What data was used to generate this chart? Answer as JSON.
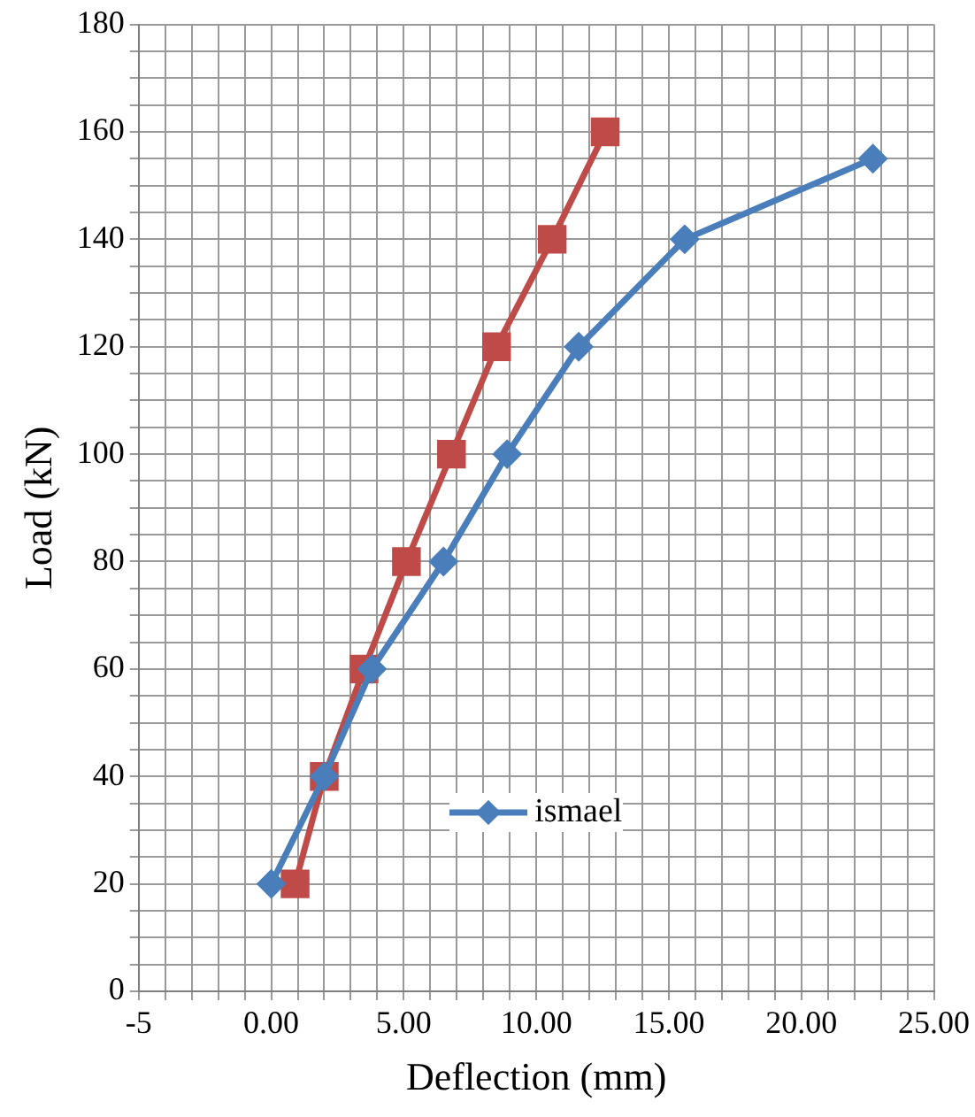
{
  "chart_data": {
    "type": "line",
    "xlabel": "Deflection (mm)",
    "ylabel": "Load (kN)",
    "xlim": [
      -5,
      25
    ],
    "ylim": [
      0,
      180
    ],
    "xticks": [
      -5,
      {
        "value": -4,
        "label": null
      },
      {
        "value": -3,
        "label": null
      },
      {
        "value": -2,
        "label": null
      },
      {
        "value": -1,
        "label": null
      },
      {
        "value": 0,
        "label": "0.00"
      },
      {
        "value": 1,
        "label": null
      },
      {
        "value": 2,
        "label": null
      },
      {
        "value": 3,
        "label": null
      },
      {
        "value": 4,
        "label": null
      },
      {
        "value": 5,
        "label": "5.00"
      },
      {
        "value": 6,
        "label": null
      },
      {
        "value": 7,
        "label": null
      },
      {
        "value": 8,
        "label": null
      },
      {
        "value": 9,
        "label": null
      },
      {
        "value": 10,
        "label": "10.00"
      },
      {
        "value": 11,
        "label": null
      },
      {
        "value": 12,
        "label": null
      },
      {
        "value": 13,
        "label": null
      },
      {
        "value": 14,
        "label": null
      },
      {
        "value": 15,
        "label": "15.00"
      },
      {
        "value": 16,
        "label": null
      },
      {
        "value": 17,
        "label": null
      },
      {
        "value": 18,
        "label": null
      },
      {
        "value": 19,
        "label": null
      },
      {
        "value": 20,
        "label": "20.00"
      },
      {
        "value": 21,
        "label": null
      },
      {
        "value": 22,
        "label": null
      },
      {
        "value": 23,
        "label": null
      },
      {
        "value": 24,
        "label": null
      },
      {
        "value": 25,
        "label": "25.00"
      }
    ],
    "yticks": [
      0,
      {
        "value": 5,
        "label": null
      },
      {
        "value": 10,
        "label": null
      },
      {
        "value": 15,
        "label": null
      },
      20,
      {
        "value": 25,
        "label": null
      },
      {
        "value": 30,
        "label": null
      },
      {
        "value": 35,
        "label": null
      },
      40,
      {
        "value": 45,
        "label": null
      },
      {
        "value": 50,
        "label": null
      },
      {
        "value": 55,
        "label": null
      },
      60,
      {
        "value": 65,
        "label": null
      },
      {
        "value": 70,
        "label": null
      },
      {
        "value": 75,
        "label": null
      },
      80,
      {
        "value": 85,
        "label": null
      },
      {
        "value": 90,
        "label": null
      },
      {
        "value": 95,
        "label": null
      },
      100,
      {
        "value": 105,
        "label": null
      },
      {
        "value": 110,
        "label": null
      },
      {
        "value": 115,
        "label": null
      },
      120,
      {
        "value": 125,
        "label": null
      },
      {
        "value": 130,
        "label": null
      },
      {
        "value": 135,
        "label": null
      },
      140,
      {
        "value": 145,
        "label": null
      },
      {
        "value": 150,
        "label": null
      },
      {
        "value": 155,
        "label": null
      },
      160,
      {
        "value": 165,
        "label": null
      },
      {
        "value": 170,
        "label": null
      },
      {
        "value": 175,
        "label": null
      },
      180
    ],
    "grid": true,
    "legend": "bottom",
    "series": [
      {
        "name": "ismael",
        "color": "#4a7ebb",
        "marker": "diamond",
        "x": [
          0,
          2.0,
          3.8,
          6.5,
          8.9,
          11.6,
          15.6,
          22.7
        ],
        "values": [
          20,
          40,
          60,
          80,
          100,
          120,
          140,
          155
        ]
      },
      {
        "color": "#be4b48",
        "marker": "square",
        "x": [
          0.9,
          2.0,
          3.5,
          5.1,
          6.8,
          8.5,
          10.6,
          12.6
        ],
        "values": [
          20,
          40,
          60,
          80,
          100,
          120,
          140,
          160
        ]
      }
    ]
  }
}
